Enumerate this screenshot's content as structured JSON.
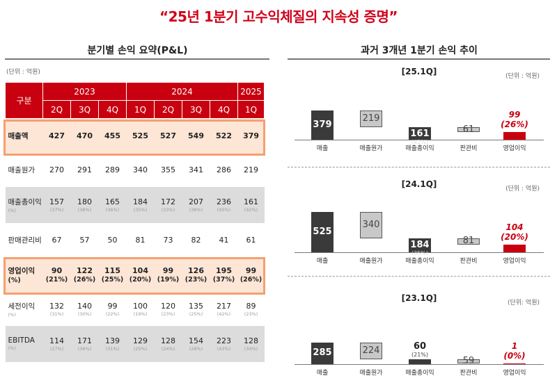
{
  "title": "“25년 1분기 고수익체질의 지속성 증명”",
  "left": {
    "section_title": "분기별 손익 요약(P&L)",
    "unit": "(단위 : 억원)",
    "header_label": "구분",
    "years": [
      "2023",
      "2024",
      "2025"
    ],
    "quarters": [
      "2Q",
      "3Q",
      "4Q",
      "1Q",
      "2Q",
      "3Q",
      "4Q",
      "1Q"
    ],
    "rows": [
      {
        "label": "매출액",
        "values": [
          "427",
          "470",
          "455",
          "525",
          "527",
          "549",
          "522",
          "379"
        ],
        "pcts": []
      },
      {
        "label": "매출원가",
        "values": [
          "270",
          "291",
          "289",
          "340",
          "355",
          "341",
          "286",
          "219"
        ],
        "pcts": []
      },
      {
        "label": "매출총이익",
        "label_sub": "(%)",
        "values": [
          "157",
          "180",
          "165",
          "184",
          "172",
          "207",
          "236",
          "161"
        ],
        "pcts": [
          "(37%)",
          "(38%)",
          "(36%)",
          "(35%)",
          "(33%)",
          "(38%)",
          "(45%)",
          "(42%)"
        ]
      },
      {
        "label": "판매관리비",
        "values": [
          "67",
          "57",
          "50",
          "81",
          "73",
          "82",
          "41",
          "61"
        ],
        "pcts": []
      },
      {
        "label": "영업이익",
        "label_sub": "(%)",
        "values": [
          "90",
          "122",
          "115",
          "104",
          "99",
          "126",
          "195",
          "99"
        ],
        "pcts": [
          "(21%)",
          "(26%)",
          "(25%)",
          "(20%)",
          "(19%)",
          "(23%)",
          "(37%)",
          "(26%)"
        ]
      },
      {
        "label": "세전이익",
        "label_sub": "(%)",
        "values": [
          "132",
          "140",
          "99",
          "100",
          "120",
          "135",
          "217",
          "89"
        ],
        "pcts": [
          "(31%)",
          "(30%)",
          "(22%)",
          "(19%)",
          "(23%)",
          "(25%)",
          "(42%)",
          "(23%)"
        ]
      },
      {
        "label": "EBITDA",
        "label_sub": "(%)",
        "values": [
          "114",
          "171",
          "139",
          "129",
          "128",
          "154",
          "223",
          "128"
        ],
        "pcts": [
          "(27%)",
          "(36%)",
          "(31%)",
          "(25%)",
          "(24%)",
          "(28%)",
          "(43%)",
          "(34%)"
        ]
      }
    ]
  },
  "right": {
    "section_title": "과거 3개년 1분기 손익 추이",
    "x_labels": [
      "매출",
      "매출원가",
      "매출총이익",
      "판관비",
      "영업이익"
    ],
    "colors": {
      "revenue": "#3a3a3a",
      "cost": "#c8c8c8",
      "op": "#c8000f"
    }
  },
  "chart_data": [
    {
      "type": "bar",
      "title": "[25.1Q]",
      "unit": "(단위 : 억원)",
      "categories": [
        "매출",
        "매출원가",
        "매출총이익",
        "판관비",
        "영업이익"
      ],
      "values": [
        379,
        219,
        161,
        61,
        99
      ],
      "labels": [
        "379",
        "219",
        "161",
        "61",
        "99"
      ],
      "sub_labels": [
        "",
        "",
        "(42%)",
        "",
        "(26%)"
      ]
    },
    {
      "type": "bar",
      "title": "[24.1Q]",
      "unit": "(단위 : 억원)",
      "categories": [
        "매출",
        "매출원가",
        "매출총이익",
        "판관비",
        "영업이익"
      ],
      "values": [
        525,
        340,
        184,
        81,
        104
      ],
      "labels": [
        "525",
        "340",
        "184",
        "81",
        "104"
      ],
      "sub_labels": [
        "",
        "",
        "(35%)",
        "",
        "(20%)"
      ]
    },
    {
      "type": "bar",
      "title": "[23.1Q]",
      "unit": "(단위: 억원)",
      "categories": [
        "매출",
        "매출원가",
        "매출총이익",
        "판관비",
        "영업이익"
      ],
      "values": [
        285,
        224,
        60,
        59,
        1
      ],
      "labels": [
        "285",
        "224",
        "60",
        "59",
        "1"
      ],
      "sub_labels": [
        "",
        "",
        "(21%)",
        "",
        "(0%)"
      ]
    }
  ]
}
